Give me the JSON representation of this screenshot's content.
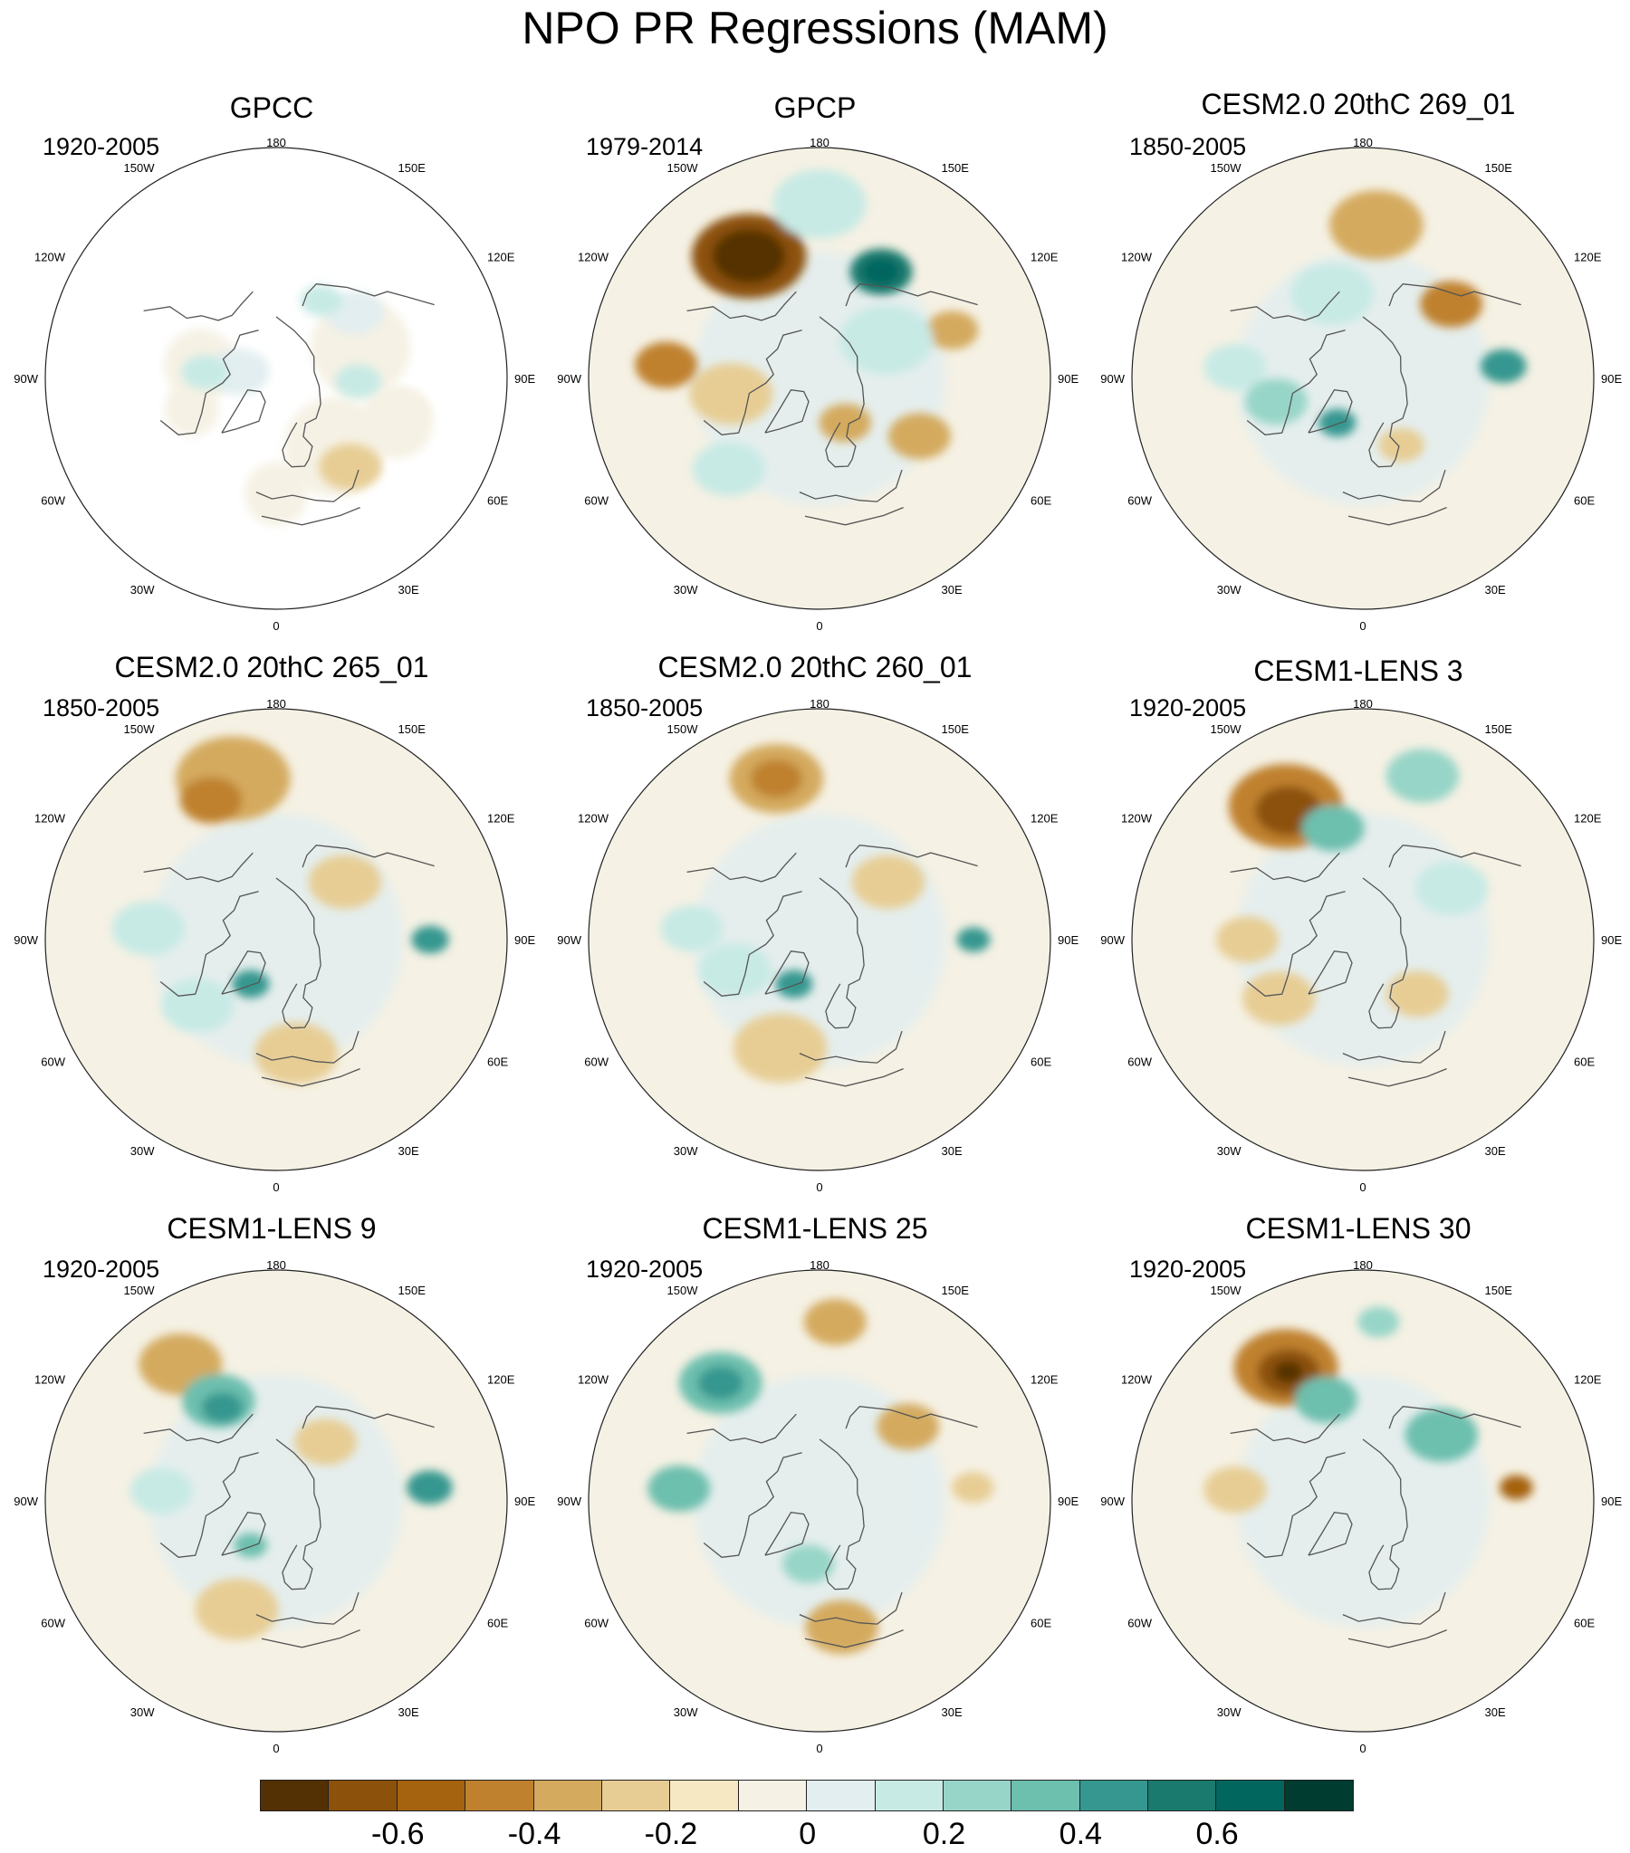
{
  "title": "NPO PR Regressions (MAM)",
  "lon_labels": {
    "l180": "180",
    "l150e": "150E",
    "l120e": "120E",
    "l90e": "90E",
    "l60e": "60E",
    "l30e": "30E",
    "l0": "0",
    "l30w": "30W",
    "l60w": "60W",
    "l90w": "90W",
    "l120w": "120W",
    "l150w": "150W"
  },
  "panels": [
    {
      "title": "GPCC",
      "period": "1920-2005",
      "blobs": [
        {
          "lat": 75,
          "lon": -100,
          "r": 30,
          "c": 8
        },
        {
          "lat": 62,
          "lon": -95,
          "r": 22,
          "c": 9
        },
        {
          "lat": 58,
          "lon": 88,
          "r": 22,
          "c": 9
        },
        {
          "lat": 50,
          "lon": 130,
          "r": 28,
          "c": 8
        },
        {
          "lat": 45,
          "lon": 40,
          "r": 30,
          "c": 5
        },
        {
          "lat": 55,
          "lon": 150,
          "r": 20,
          "c": 9
        },
        {
          "lat": 40,
          "lon": 75,
          "r": 28,
          "c": 7
        }
      ],
      "missing": true
    },
    {
      "title": "GPCP",
      "period": "1979-2014",
      "blobs": [
        {
          "lat": 35,
          "lon": -150,
          "r": 55,
          "c": 1
        },
        {
          "lat": 35,
          "lon": -150,
          "r": 35,
          "c": 0
        },
        {
          "lat": 42,
          "lon": 150,
          "r": 30,
          "c": 13
        },
        {
          "lat": 42,
          "lon": 150,
          "r": 18,
          "c": 14
        },
        {
          "lat": 22,
          "lon": 180,
          "r": 45,
          "c": 9
        },
        {
          "lat": 30,
          "lon": -95,
          "r": 30,
          "c": 3
        },
        {
          "lat": 55,
          "lon": -80,
          "r": 40,
          "c": 5
        },
        {
          "lat": 70,
          "lon": 30,
          "r": 25,
          "c": 4
        },
        {
          "lat": 40,
          "lon": -45,
          "r": 35,
          "c": 9
        },
        {
          "lat": 45,
          "lon": 60,
          "r": 30,
          "c": 4
        },
        {
          "lat": 35,
          "lon": 110,
          "r": 25,
          "c": 4
        },
        {
          "lat": 60,
          "lon": 120,
          "r": 45,
          "c": 9
        }
      ]
    },
    {
      "title": "CESM2.0 20thC 269_01",
      "period": "1850-2005",
      "blobs": [
        {
          "lat": 30,
          "lon": 175,
          "r": 45,
          "c": 4
        },
        {
          "lat": 45,
          "lon": 130,
          "r": 30,
          "c": 3
        },
        {
          "lat": 35,
          "lon": 95,
          "r": 22,
          "c": 12
        },
        {
          "lat": 55,
          "lon": -75,
          "r": 30,
          "c": 10
        },
        {
          "lat": 40,
          "lon": -95,
          "r": 30,
          "c": 9
        },
        {
          "lat": 60,
          "lon": 30,
          "r": 22,
          "c": 5
        },
        {
          "lat": 70,
          "lon": -30,
          "r": 18,
          "c": 12
        },
        {
          "lat": 55,
          "lon": -160,
          "r": 40,
          "c": 9
        }
      ]
    },
    {
      "title": "CESM2.0 20thC 265_01",
      "period": "1850-2005",
      "blobs": [
        {
          "lat": 25,
          "lon": -165,
          "r": 55,
          "c": 4
        },
        {
          "lat": 30,
          "lon": -155,
          "r": 30,
          "c": 3
        },
        {
          "lat": 40,
          "lon": -95,
          "r": 35,
          "c": 9
        },
        {
          "lat": 70,
          "lon": -30,
          "r": 18,
          "c": 12
        },
        {
          "lat": 55,
          "lon": 130,
          "r": 35,
          "c": 5
        },
        {
          "lat": 30,
          "lon": 90,
          "r": 18,
          "c": 12
        },
        {
          "lat": 45,
          "lon": 10,
          "r": 40,
          "c": 5
        },
        {
          "lat": 50,
          "lon": -50,
          "r": 35,
          "c": 9
        }
      ]
    },
    {
      "title": "CESM2.0 20thC 260_01",
      "period": "1850-2005",
      "blobs": [
        {
          "lat": 25,
          "lon": -165,
          "r": 45,
          "c": 4
        },
        {
          "lat": 25,
          "lon": -165,
          "r": 25,
          "c": 3
        },
        {
          "lat": 40,
          "lon": -95,
          "r": 30,
          "c": 9
        },
        {
          "lat": 70,
          "lon": -30,
          "r": 18,
          "c": 12
        },
        {
          "lat": 55,
          "lon": 130,
          "r": 35,
          "c": 5
        },
        {
          "lat": 30,
          "lon": 90,
          "r": 16,
          "c": 12
        },
        {
          "lat": 45,
          "lon": -20,
          "r": 45,
          "c": 5
        },
        {
          "lat": 55,
          "lon": -70,
          "r": 35,
          "c": 9
        }
      ]
    },
    {
      "title": "CESM1-LENS 3",
      "period": "1920-2005",
      "blobs": [
        {
          "lat": 30,
          "lon": -150,
          "r": 55,
          "c": 3
        },
        {
          "lat": 32,
          "lon": -150,
          "r": 32,
          "c": 1
        },
        {
          "lat": 45,
          "lon": -165,
          "r": 30,
          "c": 11
        },
        {
          "lat": 22,
          "lon": 160,
          "r": 35,
          "c": 10
        },
        {
          "lat": 50,
          "lon": 120,
          "r": 35,
          "c": 9
        },
        {
          "lat": 45,
          "lon": -90,
          "r": 30,
          "c": 5
        },
        {
          "lat": 50,
          "lon": -55,
          "r": 35,
          "c": 5
        },
        {
          "lat": 60,
          "lon": 45,
          "r": 30,
          "c": 5
        }
      ]
    },
    {
      "title": "CESM1-LENS 9",
      "period": "1920-2005",
      "blobs": [
        {
          "lat": 25,
          "lon": -145,
          "r": 40,
          "c": 4
        },
        {
          "lat": 45,
          "lon": -150,
          "r": 35,
          "c": 11
        },
        {
          "lat": 48,
          "lon": -150,
          "r": 20,
          "c": 12
        },
        {
          "lat": 30,
          "lon": 95,
          "r": 22,
          "c": 12
        },
        {
          "lat": 60,
          "lon": 140,
          "r": 30,
          "c": 5
        },
        {
          "lat": 45,
          "lon": -20,
          "r": 40,
          "c": 5
        },
        {
          "lat": 70,
          "lon": -30,
          "r": 16,
          "c": 11
        },
        {
          "lat": 45,
          "lon": -95,
          "r": 30,
          "c": 9
        }
      ]
    },
    {
      "title": "CESM1-LENS 25",
      "period": "1920-2005",
      "blobs": [
        {
          "lat": 30,
          "lon": -140,
          "r": 40,
          "c": 11
        },
        {
          "lat": 30,
          "lon": -140,
          "r": 22,
          "c": 12
        },
        {
          "lat": 20,
          "lon": 175,
          "r": 30,
          "c": 4
        },
        {
          "lat": 45,
          "lon": 130,
          "r": 30,
          "c": 4
        },
        {
          "lat": 35,
          "lon": -95,
          "r": 30,
          "c": 11
        },
        {
          "lat": 40,
          "lon": 10,
          "r": 35,
          "c": 4
        },
        {
          "lat": 30,
          "lon": 95,
          "r": 20,
          "c": 5
        },
        {
          "lat": 65,
          "lon": -10,
          "r": 25,
          "c": 10
        }
      ]
    },
    {
      "title": "CESM1-LENS 30",
      "period": "1920-2005",
      "blobs": [
        {
          "lat": 30,
          "lon": -150,
          "r": 50,
          "c": 3
        },
        {
          "lat": 32,
          "lon": -150,
          "r": 30,
          "c": 1
        },
        {
          "lat": 32,
          "lon": -150,
          "r": 14,
          "c": 0
        },
        {
          "lat": 48,
          "lon": -160,
          "r": 30,
          "c": 11
        },
        {
          "lat": 50,
          "lon": 130,
          "r": 35,
          "c": 11
        },
        {
          "lat": 20,
          "lon": 175,
          "r": 20,
          "c": 10
        },
        {
          "lat": 30,
          "lon": 95,
          "r": 16,
          "c": 2
        },
        {
          "lat": 40,
          "lon": -95,
          "r": 30,
          "c": 5
        }
      ]
    }
  ],
  "colorbar": {
    "colors": [
      "#543005",
      "#8c510a",
      "#a5620f",
      "#bf812d",
      "#d4aa5e",
      "#e7cd94",
      "#f6e8c3",
      "#f5f1e4",
      "#e2eef0",
      "#c7eae5",
      "#97d5c8",
      "#6dbfae",
      "#35978f",
      "#1a7a6e",
      "#01665e",
      "#003c30"
    ],
    "labels": [
      {
        "text": "-0.6",
        "index": 2
      },
      {
        "text": "-0.4",
        "index": 4
      },
      {
        "text": "-0.2",
        "index": 6
      },
      {
        "text": "0",
        "index": 8
      },
      {
        "text": "0.2",
        "index": 10
      },
      {
        "text": "0.4",
        "index": 12
      },
      {
        "text": "0.6",
        "index": 14
      }
    ]
  }
}
